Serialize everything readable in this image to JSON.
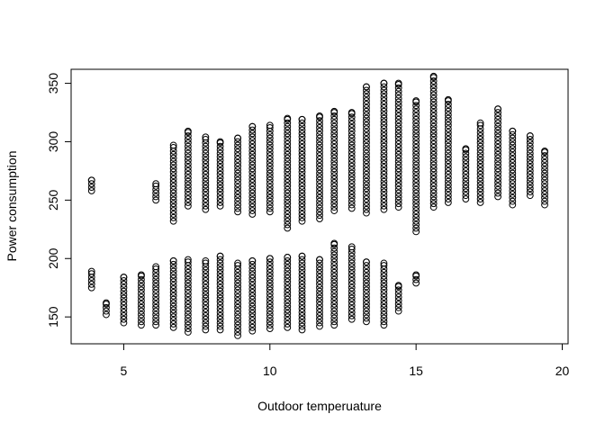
{
  "chart_data": {
    "type": "scatter",
    "title": "",
    "xlabel": "Outdoor temperuature",
    "ylabel": "Power consumption",
    "xlim": [
      3.2,
      20.2
    ],
    "ylim": [
      127,
      362
    ],
    "xticks": [
      5,
      10,
      15,
      20
    ],
    "yticks": [
      150,
      200,
      250,
      300,
      350
    ],
    "grid": false,
    "point_style": "open-circle",
    "point_color": "#000000",
    "columns": [
      {
        "x": 3.9,
        "clusters": [
          [
            258,
            267
          ],
          [
            175,
            189
          ]
        ]
      },
      {
        "x": 4.4,
        "clusters": [
          [
            152,
            162
          ]
        ]
      },
      {
        "x": 5.0,
        "clusters": [
          [
            145,
            184
          ]
        ]
      },
      {
        "x": 5.6,
        "clusters": [
          [
            143,
            186
          ]
        ]
      },
      {
        "x": 6.1,
        "clusters": [
          [
            250,
            264
          ],
          [
            143,
            193
          ]
        ]
      },
      {
        "x": 6.7,
        "clusters": [
          [
            232,
            297
          ],
          [
            141,
            198
          ]
        ]
      },
      {
        "x": 7.2,
        "clusters": [
          [
            245,
            309
          ],
          [
            137,
            199
          ]
        ]
      },
      {
        "x": 7.8,
        "clusters": [
          [
            242,
            304
          ],
          [
            139,
            198
          ]
        ]
      },
      {
        "x": 8.3,
        "clusters": [
          [
            245,
            300
          ],
          [
            139,
            202
          ]
        ]
      },
      {
        "x": 8.9,
        "clusters": [
          [
            240,
            303
          ],
          [
            134,
            196
          ]
        ]
      },
      {
        "x": 9.4,
        "clusters": [
          [
            238,
            313
          ],
          [
            138,
            198
          ]
        ]
      },
      {
        "x": 10.0,
        "clusters": [
          [
            240,
            314
          ],
          [
            140,
            200
          ]
        ]
      },
      {
        "x": 10.6,
        "clusters": [
          [
            226,
            320
          ],
          [
            141,
            201
          ]
        ]
      },
      {
        "x": 11.1,
        "clusters": [
          [
            232,
            319
          ],
          [
            139,
            202
          ]
        ]
      },
      {
        "x": 11.7,
        "clusters": [
          [
            234,
            322
          ],
          [
            142,
            199
          ]
        ]
      },
      {
        "x": 12.2,
        "clusters": [
          [
            241,
            326
          ],
          [
            143,
            213
          ]
        ]
      },
      {
        "x": 12.8,
        "clusters": [
          [
            243,
            325
          ],
          [
            148,
            210
          ]
        ]
      },
      {
        "x": 13.3,
        "clusters": [
          [
            239,
            347
          ],
          [
            146,
            197
          ]
        ]
      },
      {
        "x": 13.9,
        "clusters": [
          [
            242,
            350
          ],
          [
            143,
            196
          ]
        ]
      },
      {
        "x": 14.4,
        "clusters": [
          [
            244,
            350
          ],
          [
            155,
            177
          ]
        ]
      },
      {
        "x": 15.0,
        "clusters": [
          [
            223,
            335
          ],
          [
            179,
            186
          ]
        ]
      },
      {
        "x": 15.6,
        "clusters": [
          [
            244,
            356
          ]
        ]
      },
      {
        "x": 16.1,
        "clusters": [
          [
            248,
            336
          ]
        ]
      },
      {
        "x": 16.7,
        "clusters": [
          [
            251,
            294
          ]
        ]
      },
      {
        "x": 17.2,
        "clusters": [
          [
            248,
            316
          ]
        ]
      },
      {
        "x": 17.8,
        "clusters": [
          [
            253,
            328
          ]
        ]
      },
      {
        "x": 18.3,
        "clusters": [
          [
            246,
            309
          ]
        ]
      },
      {
        "x": 18.9,
        "clusters": [
          [
            254,
            305
          ]
        ]
      },
      {
        "x": 19.4,
        "clusters": [
          [
            246,
            292
          ]
        ]
      }
    ]
  }
}
